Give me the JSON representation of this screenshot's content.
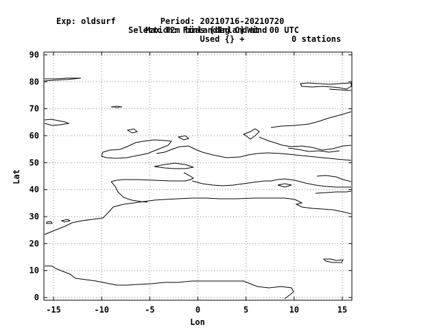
{
  "header": {
    "exp": "Exp: oldsurf",
    "selection": "Selection: FinlandInlandWind",
    "stations": "0 stations",
    "period": "Period: 20210716-20210720",
    "parameter": "Max T2m bias [deg C] at  00 UTC",
    "used": "Used {} +"
  },
  "map": {
    "xlabel": "Lon",
    "ylabel": "Lat",
    "xlim": [
      -16,
      16
    ],
    "ylim": [
      -1,
      91
    ],
    "xticks": [
      -15,
      -10,
      -5,
      0,
      5,
      10,
      15
    ],
    "yticks": [
      0,
      10,
      20,
      30,
      40,
      50,
      60,
      70,
      80,
      90
    ],
    "grid": true,
    "grid_style": "dotted",
    "coastline_color": "#000000",
    "frame_color": "#000000"
  }
}
